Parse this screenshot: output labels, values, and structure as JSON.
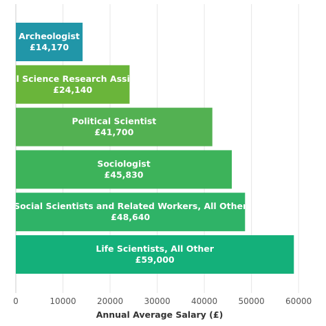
{
  "chart_data": {
    "type": "bar",
    "orientation": "horizontal",
    "title": "",
    "xlabel": "Annual Average Salary (£)",
    "ylabel": "",
    "xlim": [
      0,
      61000
    ],
    "xticks": [
      0,
      10000,
      20000,
      30000,
      40000,
      50000,
      60000
    ],
    "xtick_labels": [
      "0",
      "10000",
      "20000",
      "30000",
      "40000",
      "50000",
      "60000"
    ],
    "grid": true,
    "categories": [
      "Archeologist",
      "Social Science Research Assistant",
      "Political Scientist",
      "Sociologist",
      "Social Scientists and Related Workers, All Other",
      "Life Scientists, All Other"
    ],
    "values": [
      14170,
      24140,
      41700,
      45830,
      48640,
      59000
    ],
    "value_labels": [
      "£14,170",
      "£24,140",
      "£41,700",
      "£45,830",
      "£48,640",
      "£59,000"
    ],
    "colors": [
      "#2196a8",
      "#6ab53a",
      "#53b152",
      "#3db35a",
      "#2fb367",
      "#14b07a"
    ]
  }
}
